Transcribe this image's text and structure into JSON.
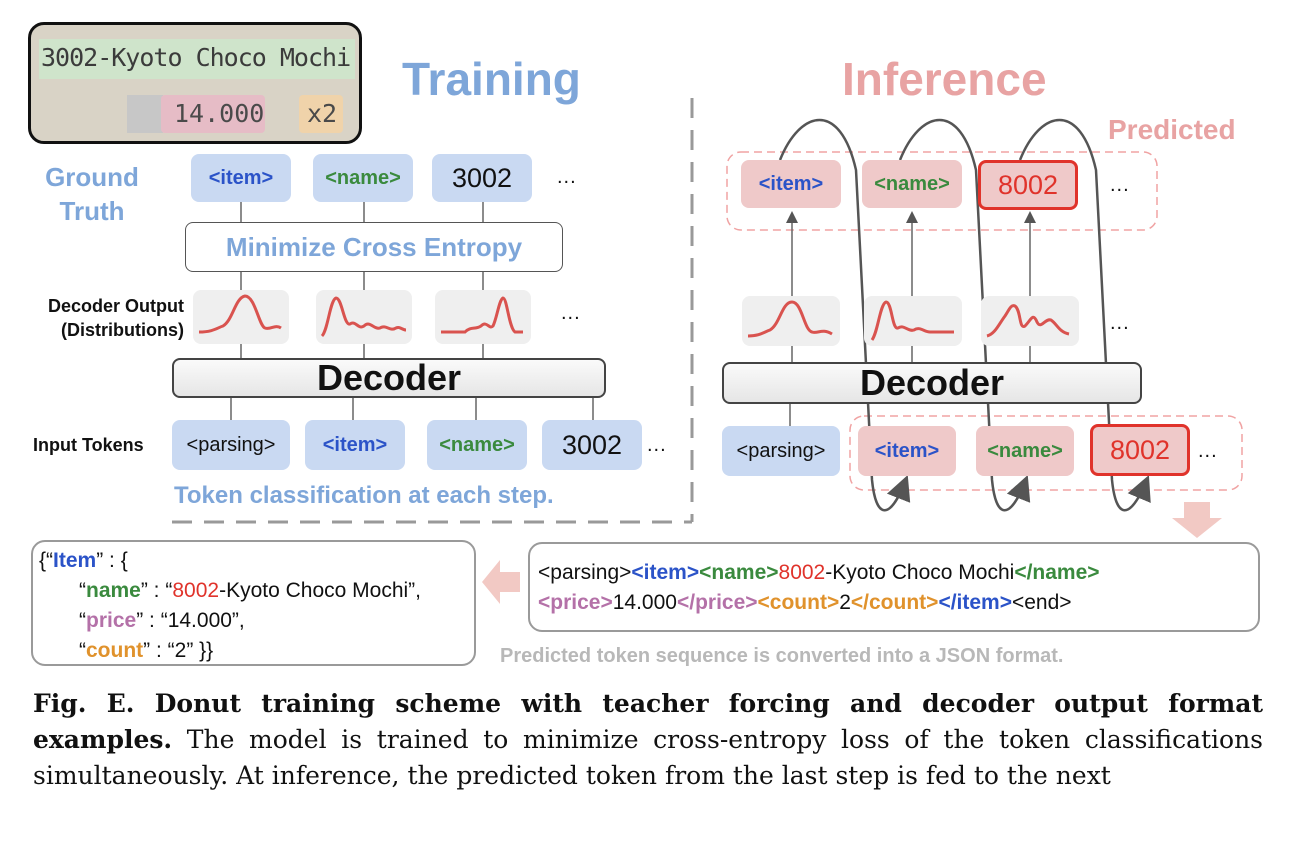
{
  "receipt": {
    "line1": "3002-Kyoto Choco Mochi",
    "price": "14.000",
    "qty": "x2"
  },
  "training": {
    "title": "Training",
    "ground_truth_label_1": "Ground",
    "ground_truth_label_2": "Truth",
    "gt_tokens": [
      "<item>",
      "<name>",
      "3002",
      "..."
    ],
    "loss_box": "Minimize Cross Entropy",
    "decoder_output_label_1": "Decoder Output",
    "decoder_output_label_2": "(Distributions)",
    "dist_ellipsis": "...",
    "decoder_label": "Decoder",
    "input_tokens_label": "Input Tokens",
    "input_tokens": [
      "<parsing>",
      "<item>",
      "<name>",
      "3002",
      "..."
    ],
    "footer": "Token classification at each step."
  },
  "inference": {
    "title": "Inference",
    "predicted_label": "Predicted",
    "pred_tokens": [
      "<item>",
      "<name>",
      "8002",
      "..."
    ],
    "dist_ellipsis": "...",
    "decoder_label": "Decoder",
    "input_tokens": [
      "<parsing>",
      "<item>",
      "<name>",
      "8002",
      "..."
    ]
  },
  "json_box": {
    "l1_open": "{“",
    "l1_key": "Item",
    "l1_rest": "” : {",
    "l2_q1": "“",
    "l2_key": "name",
    "l2_mid": "” : “",
    "l2_red": "8002",
    "l2_rest": "-Kyoto Choco Mochi”,",
    "l3_q1": "“",
    "l3_key": "price",
    "l3_rest": "” : “14.000”,",
    "l4_q1": "“",
    "l4_key": "count",
    "l4_rest": "” : “2” }}"
  },
  "seq_box": {
    "s1": "<parsing>",
    "s2": "<item>",
    "s3": "<name>",
    "s4": "8002",
    "s5": "-Kyoto Choco Mochi",
    "s6": "</name>",
    "s7": "<price>",
    "s8": "14.000",
    "s9": "</price>",
    "s10": "<count>",
    "s11": "2",
    "s12": "</count>",
    "s13": "</item>",
    "s14": "<end>"
  },
  "conversion_note": "Predicted token sequence is converted into a JSON format.",
  "caption": {
    "bold": "Fig. E. Donut training scheme with teacher forcing and decoder output format examples.",
    "text": " The model is trained to minimize cross-entropy loss of the token classifications simultaneously. At inference, the predicted token from the last step is fed to the next"
  },
  "colors": {
    "training_title": "#7ea6d9",
    "inference_title": "#e8a3a3",
    "token_blue": "#2b53c8",
    "token_green": "#3a8a3e",
    "predicted_red": "#e0332b",
    "curve": "#d9534f"
  }
}
